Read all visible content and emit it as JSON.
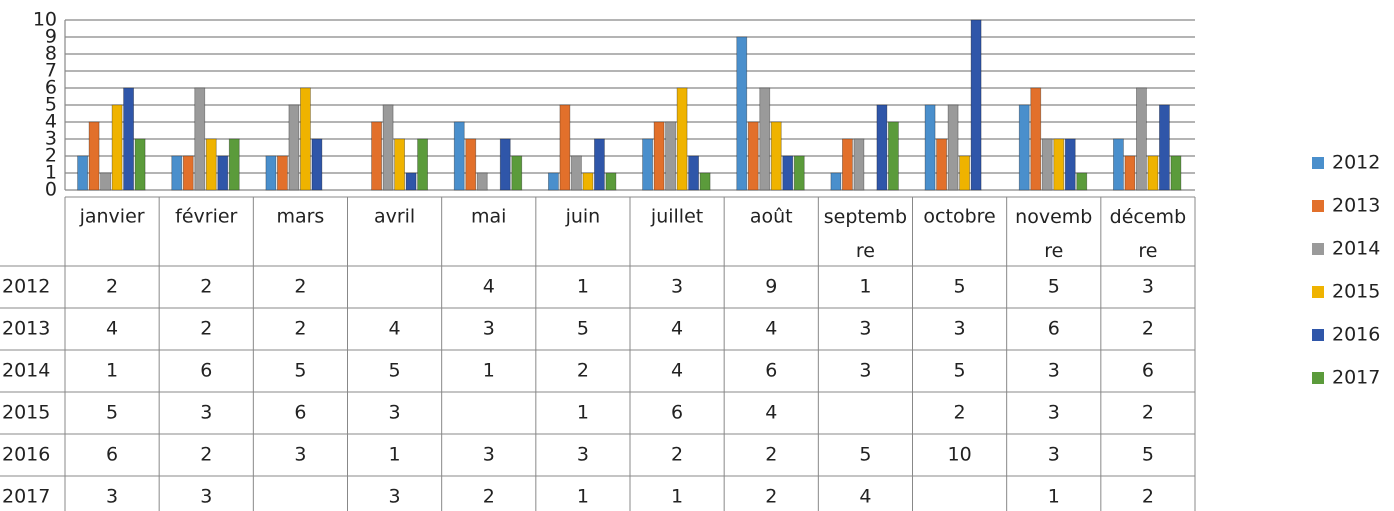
{
  "chart_data": {
    "type": "bar",
    "categories": [
      "janvier",
      "février",
      "mars",
      "avril",
      "mai",
      "juin",
      "juillet",
      "août",
      "septembre",
      "octobre",
      "novembre",
      "décembre"
    ],
    "series": [
      {
        "name": "2012",
        "color": "#4a8fcc",
        "values": [
          2,
          2,
          2,
          null,
          4,
          1,
          3,
          9,
          1,
          5,
          5,
          3
        ]
      },
      {
        "name": "2013",
        "color": "#e2702b",
        "values": [
          4,
          2,
          2,
          4,
          3,
          5,
          4,
          4,
          3,
          3,
          6,
          2
        ]
      },
      {
        "name": "2014",
        "color": "#9a9a9a",
        "values": [
          1,
          6,
          5,
          5,
          1,
          2,
          4,
          6,
          3,
          5,
          3,
          6
        ]
      },
      {
        "name": "2015",
        "color": "#efb300",
        "values": [
          5,
          3,
          6,
          3,
          null,
          1,
          6,
          4,
          null,
          2,
          3,
          2
        ]
      },
      {
        "name": "2016",
        "color": "#2f56a9",
        "values": [
          6,
          2,
          3,
          1,
          3,
          3,
          2,
          2,
          5,
          10,
          3,
          5
        ]
      },
      {
        "name": "2017",
        "color": "#5b9b3b",
        "values": [
          3,
          3,
          null,
          3,
          2,
          1,
          1,
          2,
          4,
          null,
          1,
          2
        ]
      }
    ],
    "ylim": [
      0,
      10
    ],
    "yticks": [
      0,
      1,
      2,
      3,
      4,
      5,
      6,
      7,
      8,
      9,
      10
    ],
    "grid": true,
    "legend": "right"
  }
}
